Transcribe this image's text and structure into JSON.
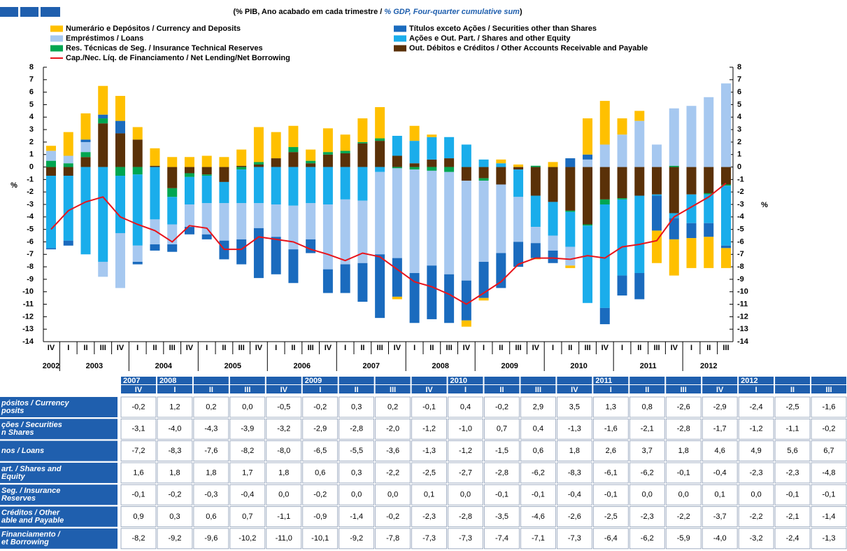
{
  "chart_data": {
    "type": "bar",
    "subtitle": [
      "(% PIB, Ano acabado em cada trimestre / ",
      "% GDP, Four-quarter cumulative sum",
      ")"
    ],
    "ylabel": "%",
    "y2label": "%",
    "categories": [
      "IV",
      "I",
      "II",
      "III",
      "IV",
      "I",
      "II",
      "III",
      "IV",
      "I",
      "II",
      "III",
      "IV",
      "I",
      "II",
      "III",
      "IV",
      "I",
      "II",
      "III",
      "IV",
      "I",
      "II",
      "III",
      "IV",
      "I",
      "II",
      "III",
      "IV",
      "I",
      "II",
      "III",
      "IV",
      "I",
      "II",
      "III",
      "IV",
      "I",
      "II",
      "III"
    ],
    "years": [
      "2002",
      "2003",
      "2004",
      "2005",
      "2006",
      "2007",
      "2008",
      "2009",
      "2010",
      "2011",
      "2012"
    ],
    "ylim": [
      -14,
      8
    ],
    "yticks": [
      -14,
      -13,
      -12,
      -11,
      -10,
      -9,
      -8,
      -7,
      -6,
      -5,
      -4,
      -3,
      -2,
      -1,
      0,
      1,
      2,
      3,
      4,
      5,
      6,
      7,
      8
    ],
    "y2lim": [
      -14,
      8
    ],
    "y2ticks": [
      -14,
      -13,
      -12,
      -11,
      -10,
      -9,
      -8,
      -7,
      -6,
      -5,
      -4,
      -3,
      -2,
      -1,
      0,
      1,
      2,
      3,
      4,
      5,
      6,
      7,
      8
    ],
    "series": [
      {
        "name": "Numerário e Depósitos / Currency and Deposits",
        "color": "#FFC000",
        "values": [
          0.4,
          1.9,
          2.1,
          2.3,
          2.0,
          1.0,
          1.4,
          0.8,
          0.8,
          0.9,
          0.8,
          1.3,
          2.8,
          2.1,
          1.7,
          0.9,
          1.9,
          1.3,
          1.9,
          2.5,
          -0.2,
          1.2,
          0.2,
          0.0,
          -0.5,
          -0.2,
          0.3,
          0.2,
          -0.1,
          0.4,
          -0.2,
          2.9,
          3.5,
          1.3,
          0.8,
          -2.6,
          -2.9,
          -2.4,
          -2.5,
          -1.6
        ]
      },
      {
        "name": "Títulos exceto Ações / Securities other than Shares",
        "color": "#1A6BBE",
        "values": [
          -0.1,
          -0.4,
          0.2,
          0.3,
          1.0,
          -0.2,
          -0.5,
          -0.6,
          -0.6,
          -0.4,
          -1.5,
          -2.0,
          -4.0,
          -3.0,
          -2.7,
          -1.1,
          -1.9,
          -2.3,
          -3.1,
          -5.1,
          -3.1,
          -4.0,
          -4.3,
          -3.9,
          -3.2,
          -2.9,
          -2.8,
          -2.0,
          -1.2,
          -1.0,
          0.7,
          0.4,
          -1.3,
          -1.6,
          -2.1,
          -2.8,
          -1.7,
          -1.2,
          -1.1,
          -0.2
        ]
      },
      {
        "name": "Empréstimos / Loans",
        "color": "#A6C8F0",
        "values": [
          0.8,
          0.6,
          0.8,
          -1.2,
          -4.4,
          -1.3,
          -2.0,
          -1.6,
          -1.8,
          -2.5,
          -3.0,
          -2.9,
          -2.0,
          -2.6,
          -3.5,
          -2.9,
          -5.2,
          -5.2,
          -5.0,
          -6.6,
          -7.2,
          -8.3,
          -7.6,
          -8.2,
          -8.0,
          -6.5,
          -5.5,
          -3.6,
          -1.3,
          -1.2,
          -1.5,
          0.6,
          1.8,
          2.6,
          3.7,
          1.8,
          4.6,
          4.9,
          5.6,
          6.7
        ]
      },
      {
        "name": "Ações e Out. Part. / Shares and other Equity",
        "color": "#1AADEB",
        "values": [
          -5.8,
          -5.2,
          -7.0,
          -7.6,
          -4.6,
          -5.7,
          -4.2,
          -2.2,
          -2.2,
          -2.2,
          -1.7,
          -2.7,
          -2.9,
          -3.0,
          -3.1,
          -2.9,
          -3.0,
          -2.6,
          -2.7,
          -0.4,
          1.6,
          1.8,
          1.8,
          1.7,
          1.8,
          0.6,
          0.3,
          -2.2,
          -2.5,
          -2.7,
          -2.8,
          -6.2,
          -8.3,
          -6.1,
          -6.2,
          -0.1,
          -0.4,
          -2.3,
          -2.3,
          -4.8
        ]
      },
      {
        "name": "Res. Técnicas de Seg. / Insurance Technical Reserves",
        "color": "#00A651",
        "values": [
          0.5,
          0.3,
          0.4,
          0.4,
          -0.7,
          -0.6,
          0.0,
          -0.7,
          -0.3,
          -0.1,
          0.0,
          -0.2,
          0.2,
          0.0,
          0.4,
          0.2,
          0.2,
          0.2,
          0.1,
          0.2,
          -0.1,
          -0.2,
          -0.3,
          -0.4,
          0.0,
          -0.2,
          0.0,
          0.0,
          0.1,
          0.0,
          -0.1,
          -0.1,
          -0.4,
          -0.1,
          0.0,
          0.0,
          0.1,
          0.0,
          -0.1,
          -0.1
        ]
      },
      {
        "name": "Out. Débitos e Créditos / Other Accounts Receivable and Payable",
        "color": "#5A3108",
        "values": [
          -0.7,
          -0.7,
          0.8,
          3.5,
          2.7,
          2.2,
          0.1,
          -1.7,
          -0.5,
          -0.6,
          -1.2,
          0.1,
          0.2,
          0.7,
          1.2,
          0.3,
          1.0,
          1.1,
          1.9,
          2.1,
          0.9,
          0.3,
          0.6,
          0.7,
          -1.1,
          -0.9,
          -1.4,
          -0.2,
          -2.3,
          -2.8,
          -3.5,
          -4.6,
          -2.6,
          -2.5,
          -2.3,
          -2.2,
          -3.7,
          -2.2,
          -2.1,
          -1.4
        ]
      },
      {
        "name": "Cap./Nec. Líq. de Financiamento / Net Lending/Net Borrowing",
        "type": "line",
        "color": "#E8141B",
        "values": [
          -5.0,
          -3.5,
          -2.8,
          -2.4,
          -4.0,
          -4.6,
          -5.1,
          -6.0,
          -4.7,
          -4.9,
          -6.6,
          -6.6,
          -5.6,
          -5.8,
          -6.0,
          -6.6,
          -7.0,
          -7.5,
          -6.9,
          -7.2,
          -8.2,
          -9.2,
          -9.6,
          -10.2,
          -11.0,
          -10.1,
          -9.2,
          -7.8,
          -7.3,
          -7.3,
          -7.4,
          -7.1,
          -7.3,
          -6.4,
          -6.2,
          -5.9,
          -4.0,
          -3.2,
          -2.4,
          -1.3
        ]
      }
    ]
  },
  "table": {
    "years": [
      "2007",
      "2008",
      null,
      null,
      null,
      "2009",
      null,
      null,
      null,
      "2010",
      null,
      null,
      null,
      "2011",
      null,
      null,
      null,
      "2012",
      null,
      null
    ],
    "quarters": [
      "IV",
      "I",
      "II",
      "III",
      "IV",
      "I",
      "II",
      "III",
      "IV",
      "I",
      "II",
      "III",
      "IV",
      "I",
      "II",
      "III",
      "IV",
      "I",
      "II",
      "III"
    ],
    "rows": [
      {
        "label": [
          "pósitos / Currency",
          "posits"
        ],
        "cells": [
          "-0,2",
          "1,2",
          "0,2",
          "0,0",
          "-0,5",
          "-0,2",
          "0,3",
          "0,2",
          "-0,1",
          "0,4",
          "-0,2",
          "2,9",
          "3,5",
          "1,3",
          "0,8",
          "-2,6",
          "-2,9",
          "-2,4",
          "-2,5",
          "-1,6"
        ]
      },
      {
        "label": [
          "ções / Securities",
          "n Shares"
        ],
        "cells": [
          "-3,1",
          "-4,0",
          "-4,3",
          "-3,9",
          "-3,2",
          "-2,9",
          "-2,8",
          "-2,0",
          "-1,2",
          "-1,0",
          "0,7",
          "0,4",
          "-1,3",
          "-1,6",
          "-2,1",
          "-2,8",
          "-1,7",
          "-1,2",
          "-1,1",
          "-0,2"
        ]
      },
      {
        "label": [
          "nos / Loans"
        ],
        "cells": [
          "-7,2",
          "-8,3",
          "-7,6",
          "-8,2",
          "-8,0",
          "-6,5",
          "-5,5",
          "-3,6",
          "-1,3",
          "-1,2",
          "-1,5",
          "0,6",
          "1,8",
          "2,6",
          "3,7",
          "1,8",
          "4,6",
          "4,9",
          "5,6",
          "6,7"
        ]
      },
      {
        "label": [
          "art. / Shares and",
          "Equity"
        ],
        "cells": [
          "1,6",
          "1,8",
          "1,8",
          "1,7",
          "1,8",
          "0,6",
          "0,3",
          "-2,2",
          "-2,5",
          "-2,7",
          "-2,8",
          "-6,2",
          "-8,3",
          "-6,1",
          "-6,2",
          "-0,1",
          "-0,4",
          "-2,3",
          "-2,3",
          "-4,8"
        ]
      },
      {
        "label": [
          "Seg. / Insurance",
          "Reserves"
        ],
        "cells": [
          "-0,1",
          "-0,2",
          "-0,3",
          "-0,4",
          "0,0",
          "-0,2",
          "0,0",
          "0,0",
          "0,1",
          "0,0",
          "-0,1",
          "-0,1",
          "-0,4",
          "-0,1",
          "0,0",
          "0,0",
          "0,1",
          "0,0",
          "-0,1",
          "-0,1"
        ]
      },
      {
        "label": [
          "Créditos / Other",
          "able and Payable"
        ],
        "cells": [
          "0,9",
          "0,3",
          "0,6",
          "0,7",
          "-1,1",
          "-0,9",
          "-1,4",
          "-0,2",
          "-2,3",
          "-2,8",
          "-3,5",
          "-4,6",
          "-2,6",
          "-2,5",
          "-2,3",
          "-2,2",
          "-3,7",
          "-2,2",
          "-2,1",
          "-1,4"
        ]
      },
      {
        "label": [
          "Financiamento /",
          "et Borrowing"
        ],
        "cells": [
          "-8,2",
          "-9,2",
          "-9,6",
          "-10,2",
          "-11,0",
          "-10,1",
          "-9,2",
          "-7,8",
          "-7,3",
          "-7,3",
          "-7,4",
          "-7,1",
          "-7,3",
          "-6,4",
          "-6,2",
          "-5,9",
          "-4,0",
          "-3,2",
          "-2,4",
          "-1,3"
        ]
      }
    ]
  }
}
